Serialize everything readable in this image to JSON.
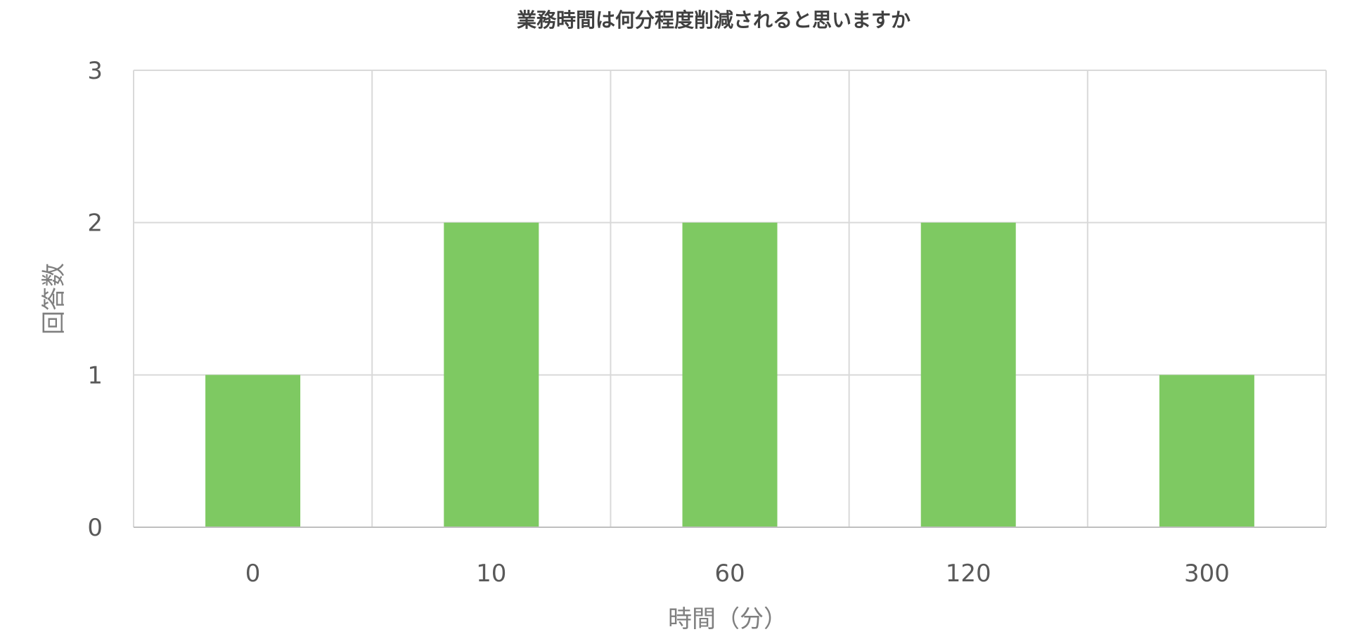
{
  "chart_data": {
    "type": "bar",
    "title": "業務時間は何分程度削減されると思いますか",
    "xlabel": "時間（分）",
    "ylabel": "回答数",
    "categories": [
      "0",
      "10",
      "60",
      "120",
      "300"
    ],
    "values": [
      1,
      2,
      2,
      2,
      1
    ],
    "ylim": [
      0,
      3
    ],
    "yticks": [
      "0",
      "1",
      "2",
      "3"
    ],
    "grid": true,
    "legend": "none",
    "colors": {
      "bar": "#7ec962"
    }
  }
}
